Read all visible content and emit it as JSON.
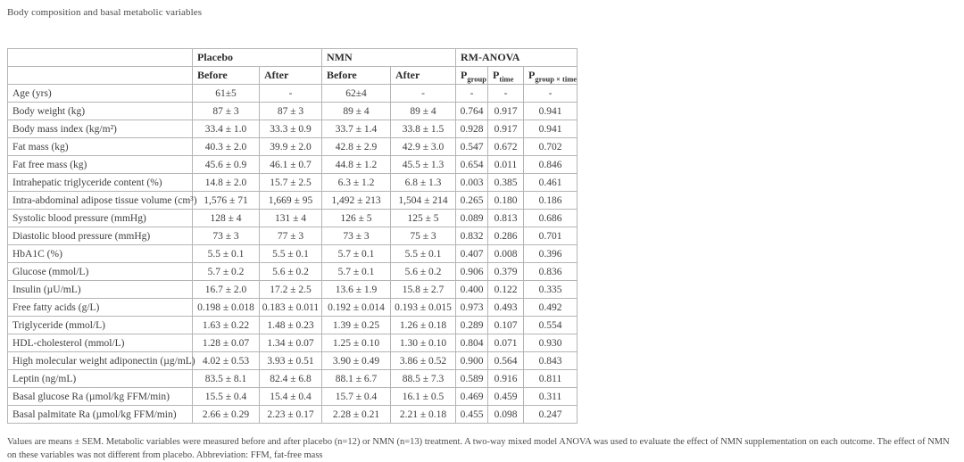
{
  "page": {
    "title": "Body composition and basal metabolic variables",
    "footnote": "Values are means ± SEM. Metabolic variables were measured before and after placebo (n=12) or NMN (n=13) treatment. A two-way mixed model ANOVA was used to evaluate the effect of NMN supplementation on each outcome. The effect of NMN on these variables was not different from placebo. Abbreviation: FFM, fat-free mass"
  },
  "table": {
    "groups": [
      "Placebo",
      "NMN",
      "RM-ANOVA"
    ],
    "sub_headers": [
      "Before",
      "After",
      "Before",
      "After"
    ],
    "p_headers": [
      {
        "base": "P",
        "sub": "group"
      },
      {
        "base": "P",
        "sub": "time"
      },
      {
        "base": "P",
        "sub": "group × time"
      }
    ],
    "rows": [
      [
        "Age (yrs)",
        "61±5",
        "-",
        "62±4",
        "-",
        "-",
        "-",
        "-"
      ],
      [
        "Body weight (kg)",
        "87 ± 3",
        "87 ± 3",
        "89 ± 4",
        "89 ± 4",
        "0.764",
        "0.917",
        "0.941"
      ],
      [
        "Body mass index (kg/m²)",
        "33.4 ± 1.0",
        "33.3 ± 0.9",
        "33.7 ± 1.4",
        "33.8 ± 1.5",
        "0.928",
        "0.917",
        "0.941"
      ],
      [
        "Fat mass (kg)",
        "40.3 ± 2.0",
        "39.9 ± 2.0",
        "42.8 ± 2.9",
        "42.9 ± 3.0",
        "0.547",
        "0.672",
        "0.702"
      ],
      [
        "Fat free mass (kg)",
        "45.6 ± 0.9",
        "46.1 ± 0.7",
        "44.8 ± 1.2",
        "45.5 ± 1.3",
        "0.654",
        "0.011",
        "0.846"
      ],
      [
        "Intrahepatic triglyceride content (%)",
        "14.8 ± 2.0",
        "15.7 ± 2.5",
        "6.3 ± 1.2",
        "6.8 ± 1.3",
        "0.003",
        "0.385",
        "0.461"
      ],
      [
        "Intra-abdominal adipose tissue volume (cm³)",
        "1,576 ± 71",
        "1,669 ± 95",
        "1,492 ± 213",
        "1,504 ± 214",
        "0.265",
        "0.180",
        "0.186"
      ],
      [
        "Systolic blood pressure (mmHg)",
        "128 ± 4",
        "131 ± 4",
        "126 ± 5",
        "125 ± 5",
        "0.089",
        "0.813",
        "0.686"
      ],
      [
        "Diastolic blood pressure (mmHg)",
        "73 ± 3",
        "77 ± 3",
        "73 ± 3",
        "75 ± 3",
        "0.832",
        "0.286",
        "0.701"
      ],
      [
        "HbA1C (%)",
        "5.5 ± 0.1",
        "5.5 ± 0.1",
        "5.7 ± 0.1",
        "5.5 ± 0.1",
        "0.407",
        "0.008",
        "0.396"
      ],
      [
        "Glucose (mmol/L)",
        "5.7 ± 0.2",
        "5.6 ± 0.2",
        "5.7 ± 0.1",
        "5.6 ± 0.2",
        "0.906",
        "0.379",
        "0.836"
      ],
      [
        "Insulin (µU/mL)",
        "16.7 ± 2.0",
        "17.2 ± 2.5",
        "13.6 ± 1.9",
        "15.8 ± 2.7",
        "0.400",
        "0.122",
        "0.335"
      ],
      [
        "Free fatty acids (g/L)",
        "0.198 ± 0.018",
        "0.183 ± 0.011",
        "0.192 ± 0.014",
        "0.193 ± 0.015",
        "0.973",
        "0.493",
        "0.492"
      ],
      [
        "Triglyceride (mmol/L)",
        "1.63 ± 0.22",
        "1.48 ± 0.23",
        "1.39 ± 0.25",
        "1.26 ± 0.18",
        "0.289",
        "0.107",
        "0.554"
      ],
      [
        "HDL-cholesterol (mmol/L)",
        "1.28 ± 0.07",
        "1.34 ± 0.07",
        "1.25 ± 0.10",
        "1.30 ± 0.10",
        "0.804",
        "0.071",
        "0.930"
      ],
      [
        "High molecular weight adiponectin (µg/mL)",
        "4.02 ± 0.53",
        "3.93 ± 0.51",
        "3.90 ± 0.49",
        "3.86 ± 0.52",
        "0.900",
        "0.564",
        "0.843"
      ],
      [
        "Leptin (ng/mL)",
        "83.5 ± 8.1",
        "82.4 ± 6.8",
        "88.1 ± 6.7",
        "88.5 ± 7.3",
        "0.589",
        "0.916",
        "0.811"
      ],
      [
        "Basal glucose Ra (µmol/kg FFM/min)",
        "15.5 ± 0.4",
        "15.4 ± 0.4",
        "15.7 ± 0.4",
        "16.1 ± 0.5",
        "0.469",
        "0.459",
        "0.311"
      ],
      [
        "Basal palmitate Ra (µmol/kg FFM/min)",
        "2.66 ± 0.29",
        "2.23 ± 0.17",
        "2.28 ± 0.21",
        "2.21 ± 0.18",
        "0.455",
        "0.098",
        "0.247"
      ]
    ],
    "colors": {
      "background": "#ffffff",
      "outer_border": "#999999",
      "inner_border": "#b5b5b5",
      "header_text": "#2e2e2e",
      "body_text": "#3d3d3d"
    }
  }
}
